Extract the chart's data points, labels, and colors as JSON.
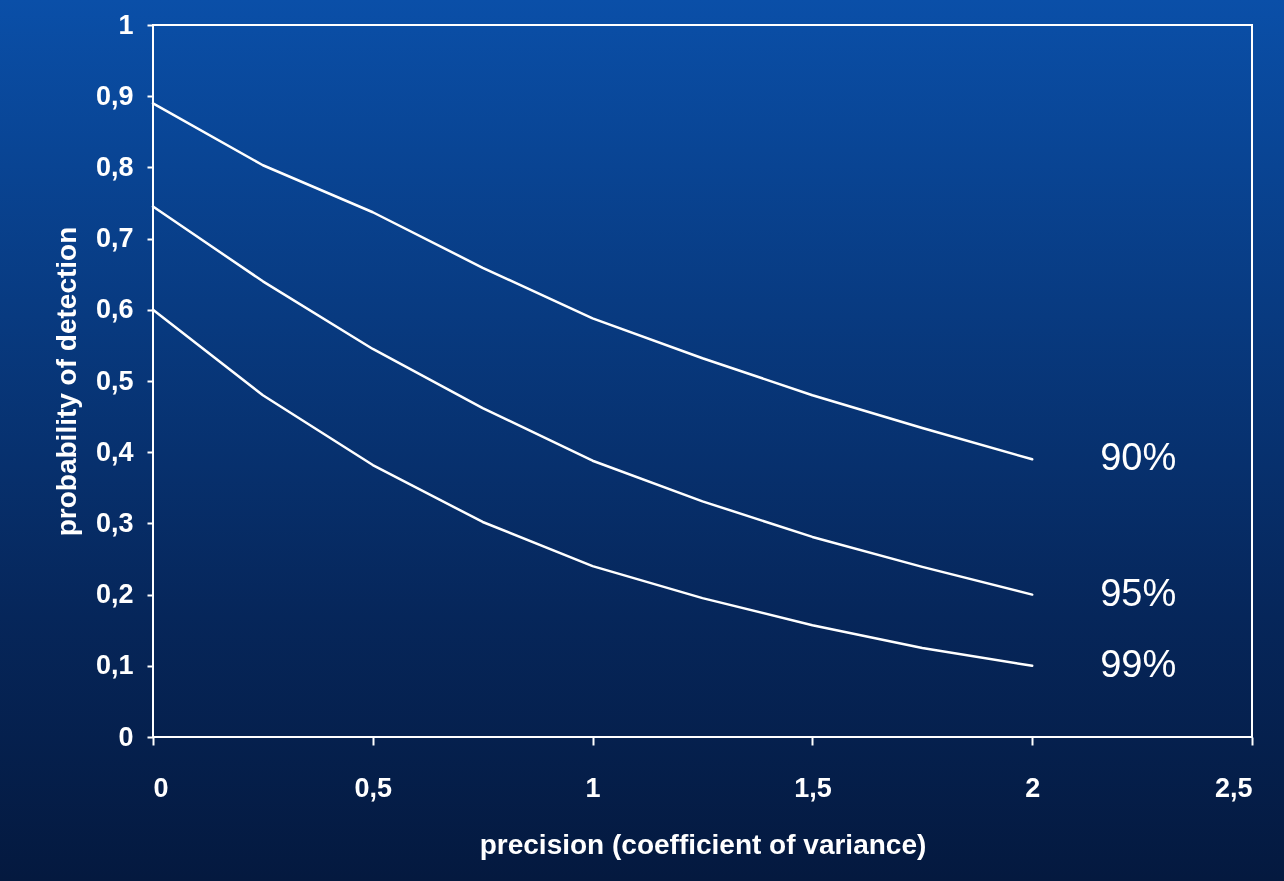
{
  "chart_data": {
    "type": "line",
    "xlabel": "precision (coefficient of variance)",
    "ylabel": "probability of detection",
    "x": [
      0,
      0.25,
      0.5,
      0.75,
      1,
      1.25,
      1.5,
      1.75,
      2
    ],
    "series": [
      {
        "name": "90%",
        "color": "#ffffff",
        "values": [
          0.89,
          0.803,
          0.737,
          0.659,
          0.588,
          0.532,
          0.48,
          0.434,
          0.39
        ]
      },
      {
        "name": "95%",
        "color": "#ffffff",
        "values": [
          0.745,
          0.64,
          0.545,
          0.462,
          0.388,
          0.331,
          0.281,
          0.239,
          0.2
        ]
      },
      {
        "name": "99%",
        "color": "#ffffff",
        "values": [
          0.6,
          0.48,
          0.382,
          0.302,
          0.24,
          0.195,
          0.157,
          0.125,
          0.1
        ]
      }
    ],
    "xlim": [
      0,
      2.5
    ],
    "xticks": [
      0,
      {
        "value": 0.5,
        "label": "0,5"
      },
      1,
      {
        "value": 1.5,
        "label": "1,5"
      },
      2,
      {
        "value": 2.5,
        "label": "2,5"
      }
    ],
    "ylim": [
      0,
      1
    ],
    "yticks": [
      0,
      {
        "value": 0.1,
        "label": "0,1"
      },
      {
        "value": 0.2,
        "label": "0,2"
      },
      {
        "value": 0.3,
        "label": "0,3"
      },
      {
        "value": 0.4,
        "label": "0,4"
      },
      {
        "value": 0.5,
        "label": "0,5"
      },
      {
        "value": 0.6,
        "label": "0,6"
      },
      {
        "value": 0.7,
        "label": "0,7"
      },
      {
        "value": 0.8,
        "label": "0,8"
      },
      {
        "value": 0.9,
        "label": "0,9"
      },
      1
    ],
    "grid": false,
    "legend": false,
    "marker": "none",
    "line_style": "solid"
  }
}
